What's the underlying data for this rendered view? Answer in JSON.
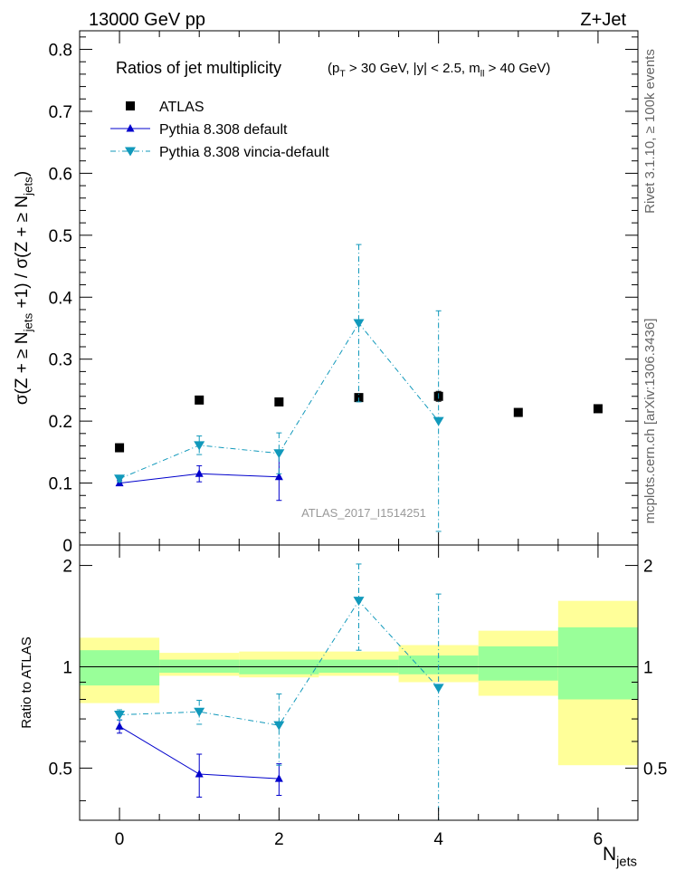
{
  "header": {
    "left": "13000 GeV pp",
    "right": "Z+Jet"
  },
  "side_labels": {
    "rivet": "Rivet 3.1.10, ≥ 100k events",
    "mcplots": "mcplots.cern.ch [arXiv:1306.3436]"
  },
  "colors": {
    "atlas": "#000000",
    "pythia_default": "#0000cc",
    "vincia": "#1199bb",
    "band_inner": "#99ff99",
    "band_outer": "#ffff99"
  },
  "chart_data": [
    {
      "type": "scatter",
      "title": "Ratios of jet multiplicity",
      "title_cuts": "(p_T > 30 GeV, |y| < 2.5, m_ll > 40 GeV)",
      "ylabel": "σ(Z + ≥ N_jets +1) / σ(Z + ≥ N_jets)",
      "xlim": [
        -0.5,
        6.5
      ],
      "ylim": [
        0,
        0.83
      ],
      "yticks": [
        0,
        0.1,
        0.2,
        0.3,
        0.4,
        0.5,
        0.6,
        0.7,
        0.8
      ],
      "ytick_labels": [
        "0",
        "0.1",
        "0.2",
        "0.3",
        "0.4",
        "0.5",
        "0.6",
        "0.7",
        "0.8"
      ],
      "legend_position": "top-left",
      "watermark": "ATLAS_2017_I1514251",
      "series": [
        {
          "name": "ATLAS",
          "marker": "square",
          "x": [
            0,
            1,
            2,
            3,
            4,
            5,
            6
          ],
          "y": [
            0.157,
            0.234,
            0.231,
            0.238,
            0.24,
            0.214,
            0.22
          ],
          "yerr": [
            0.003,
            0.004,
            0.004,
            0.006,
            0.008,
            0.004,
            0.004
          ]
        },
        {
          "name": "Pythia 8.308 default",
          "marker": "triangle-up",
          "line": "solid",
          "x": [
            0,
            1,
            2
          ],
          "y": [
            0.1,
            0.115,
            0.11
          ],
          "yerr": [
            0.004,
            0.013,
            0.038
          ]
        },
        {
          "name": "Pythia 8.308 vincia-default",
          "marker": "triangle-down",
          "line": "dash-dot",
          "x": [
            0,
            1,
            2,
            3,
            4
          ],
          "y": [
            0.107,
            0.161,
            0.148,
            0.358,
            0.2
          ],
          "yerr": [
            0.005,
            0.015,
            0.033,
            0.127,
            0.178
          ]
        }
      ]
    },
    {
      "type": "scatter",
      "ylabel": "Ratio to ATLAS",
      "xlabel": "N_jets",
      "xlim": [
        -0.5,
        6.5
      ],
      "xticks": [
        0,
        2,
        4,
        6
      ],
      "xtick_labels": [
        "0",
        "2",
        "4",
        "6"
      ],
      "ylim": [
        0.35,
        2.3
      ],
      "yticks": [
        0.5,
        1,
        2
      ],
      "ytick_labels": [
        "0.5",
        "1",
        "2"
      ],
      "bands": {
        "edges": [
          -0.5,
          0.5,
          1.5,
          2.5,
          3.5,
          4.5,
          5.5,
          6.5
        ],
        "inner": [
          [
            0.88,
            1.12
          ],
          [
            0.96,
            1.05
          ],
          [
            0.95,
            1.05
          ],
          [
            0.96,
            1.05
          ],
          [
            0.95,
            1.08
          ],
          [
            0.91,
            1.15
          ],
          [
            0.8,
            1.31
          ]
        ],
        "outer": [
          [
            0.78,
            1.22
          ],
          [
            0.94,
            1.1
          ],
          [
            0.93,
            1.11
          ],
          [
            0.94,
            1.11
          ],
          [
            0.9,
            1.16
          ],
          [
            0.82,
            1.28
          ],
          [
            0.51,
            1.57
          ]
        ]
      },
      "series": [
        {
          "name": "Pythia 8.308 default",
          "x": [
            0,
            1,
            2
          ],
          "y": [
            0.665,
            0.48,
            0.465
          ],
          "yerr": [
            0.03,
            0.07,
            0.05
          ]
        },
        {
          "name": "Pythia 8.308 vincia-default",
          "x": [
            0,
            1,
            2,
            3,
            4
          ],
          "y": [
            0.72,
            0.735,
            0.67,
            1.57,
            0.865
          ],
          "yerr": [
            0.025,
            0.06,
            0.16,
            0.45,
            0.78
          ]
        }
      ]
    }
  ]
}
